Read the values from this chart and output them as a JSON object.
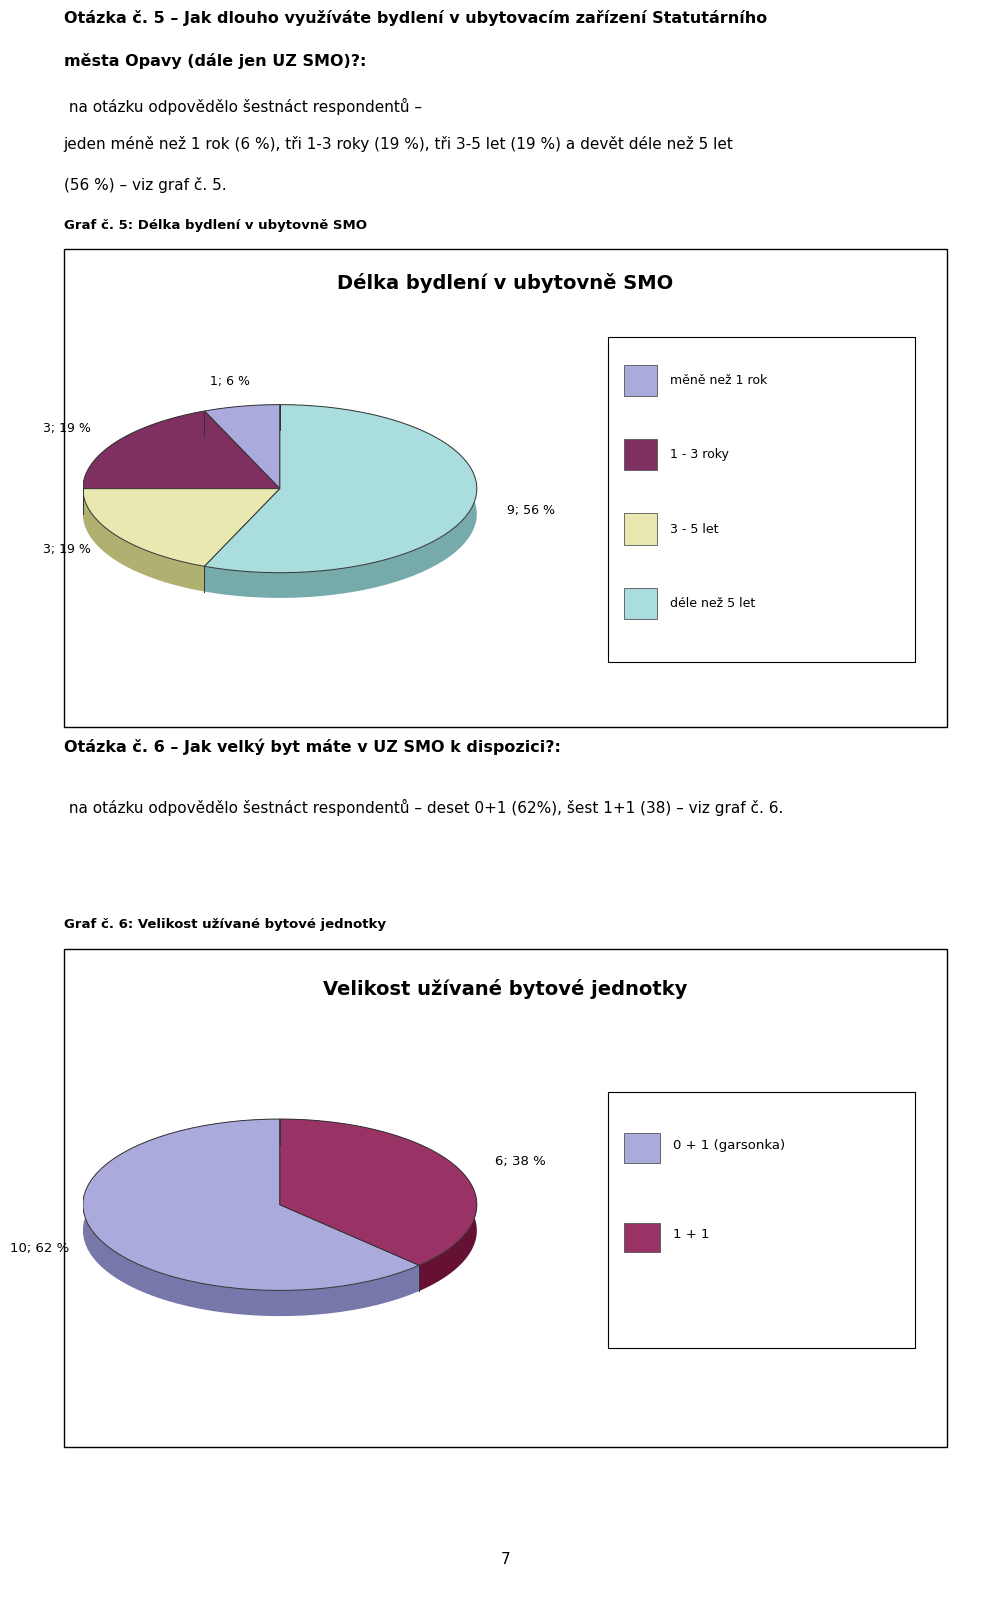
{
  "page_bg": "#ffffff",
  "chart1": {
    "title": "Délka bydlení v ubytovně SMO",
    "caption": "Graf č. 5: Délka bydlení v ubytovně SMO",
    "values": [
      1,
      3,
      3,
      9
    ],
    "colors_top": [
      "#aaaadd",
      "#803060",
      "#e8e8b0",
      "#aadddd"
    ],
    "colors_side": [
      "#7777aa",
      "#501830",
      "#b0b070",
      "#77aaaa"
    ],
    "legend_labels": [
      "měně než 1 rok",
      "1 - 3 roky",
      "3 - 5 let",
      "déle než 5 let"
    ],
    "pie_labels": [
      "1; 6 %",
      "3; 19 %",
      "3; 19 %",
      "9; 56 %"
    ],
    "startangle": 90
  },
  "chart2": {
    "title": "Velikost užívané bytové jednotky",
    "caption": "Graf č. 6: Velikost užívané bytové jednotky",
    "values": [
      10,
      6
    ],
    "colors_top": [
      "#aaaadd",
      "#993366"
    ],
    "colors_side": [
      "#7777aa",
      "#661133"
    ],
    "legend_labels": [
      "0 + 1 (garsonka)",
      "1 + 1"
    ],
    "pie_labels": [
      "10; 62 %",
      "6; 38 %"
    ],
    "startangle": 90
  }
}
